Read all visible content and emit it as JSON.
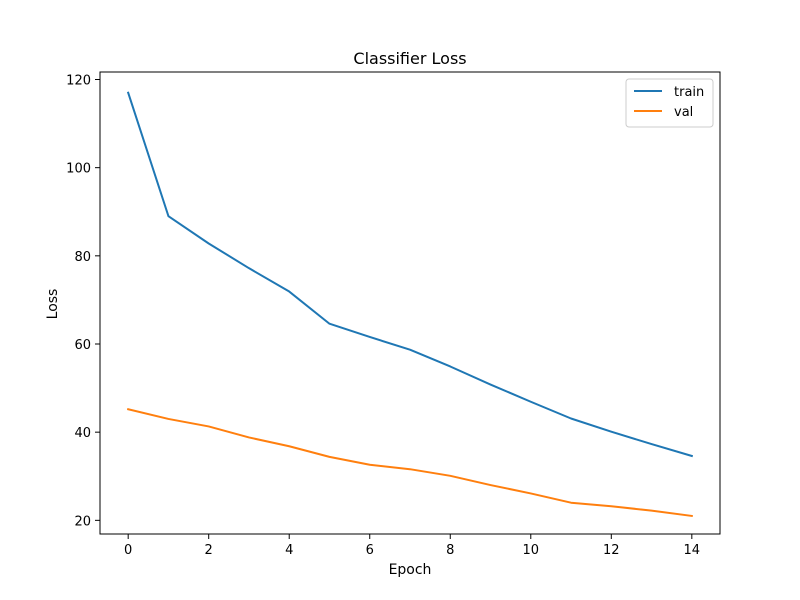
{
  "chart_data": {
    "type": "line",
    "title": "Classifier Loss",
    "xlabel": "Epoch",
    "ylabel": "Loss",
    "x": [
      0,
      1,
      2,
      3,
      4,
      5,
      6,
      7,
      8,
      9,
      10,
      11,
      12,
      13,
      14
    ],
    "xlim": [
      -0.7,
      14.7
    ],
    "ylim": [
      16.9,
      121.7
    ],
    "xticks": [
      0,
      2,
      4,
      6,
      8,
      10,
      12,
      14
    ],
    "yticks": [
      20,
      40,
      60,
      80,
      100,
      120
    ],
    "grid": false,
    "legend_position": "top-right",
    "series": [
      {
        "name": "train",
        "color": "#1f77b4",
        "values": [
          117.0,
          89.0,
          82.8,
          77.2,
          71.9,
          64.6,
          61.6,
          58.7,
          54.9,
          50.8,
          46.9,
          43.1,
          40.1,
          37.3,
          34.6
        ]
      },
      {
        "name": "val",
        "color": "#ff7f0e",
        "values": [
          45.2,
          43.0,
          41.3,
          38.8,
          36.8,
          34.4,
          32.6,
          31.6,
          30.1,
          28.0,
          26.1,
          24.0,
          23.2,
          22.2,
          21.0
        ]
      }
    ]
  }
}
